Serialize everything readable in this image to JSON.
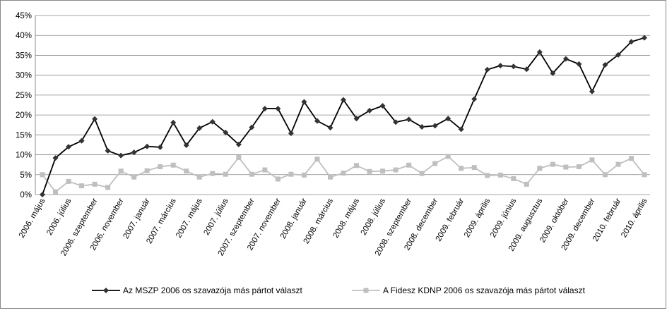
{
  "chart_data": {
    "type": "line",
    "categories": [
      "2006. május",
      null,
      "2006. július",
      null,
      "2006. szeptember",
      null,
      "2006. november",
      null,
      "2007. január",
      null,
      "2007. március",
      null,
      "2007. május",
      null,
      "2007. július",
      null,
      "2007. szeptember",
      null,
      "2007. november",
      null,
      "2008. január",
      null,
      "2008. március",
      null,
      "2008. május",
      null,
      "2008. július",
      null,
      "2008. szeptember",
      null,
      "2008. december",
      null,
      "2009. február",
      null,
      "2009. április",
      null,
      "2009. június",
      null,
      "2009. augusztus",
      null,
      "2009. október",
      null,
      "2009. december",
      null,
      "2010. február",
      null,
      "2010. április"
    ],
    "series": [
      {
        "name": "Az MSZP 2006 os szavazója más pártot választ",
        "color": "#000000",
        "marker": "diamond",
        "values": [
          0,
          9.2,
          12,
          13.5,
          19,
          11,
          9.8,
          10.6,
          12.1,
          11.9,
          18.1,
          12.4,
          16.7,
          18.3,
          15.6,
          12.6,
          16.9,
          21.6,
          21.6,
          15.4,
          23.3,
          18.5,
          16.8,
          23.8,
          19.1,
          21.1,
          22.3,
          18.2,
          18.9,
          17.0,
          17.3,
          19.1,
          16.4,
          24.0,
          31.4,
          32.4,
          32.2,
          31.5,
          35.8,
          30.5,
          34.1,
          32.8,
          25.9,
          32.6,
          35.1,
          38.4,
          39.4
        ]
      },
      {
        "name": "A Fidesz KDNP 2006 os szavazója más pártot választ",
        "color": "#bfbfbf",
        "marker": "square",
        "values": [
          5.0,
          0.7,
          3.3,
          2.2,
          2.6,
          1.8,
          5.9,
          4.4,
          6.0,
          7.0,
          7.4,
          5.9,
          4.4,
          5.3,
          5.1,
          9.3,
          5.1,
          6.2,
          3.9,
          5.1,
          4.9,
          8.9,
          4.4,
          5.4,
          7.3,
          5.8,
          5.9,
          6.2,
          7.4,
          5.3,
          7.8,
          9.6,
          6.6,
          6.8,
          4.8,
          4.9,
          4.0,
          2.6,
          6.6,
          7.6,
          6.9,
          7.0,
          8.7,
          5.0,
          7.6,
          9.1,
          5.0
        ]
      }
    ],
    "ylim": [
      0,
      45
    ],
    "yticks": [
      {
        "value": 0,
        "label": "0%"
      },
      {
        "value": 5,
        "label": "5%"
      },
      {
        "value": 10,
        "label": "10%"
      },
      {
        "value": 15,
        "label": "15%"
      },
      {
        "value": 20,
        "label": "20%"
      },
      {
        "value": 25,
        "label": "25%"
      },
      {
        "value": 30,
        "label": "30%"
      },
      {
        "value": 35,
        "label": "35%"
      },
      {
        "value": 40,
        "label": "40%"
      },
      {
        "value": 45,
        "label": "45%"
      }
    ],
    "grid": true,
    "legend": "bottom"
  }
}
